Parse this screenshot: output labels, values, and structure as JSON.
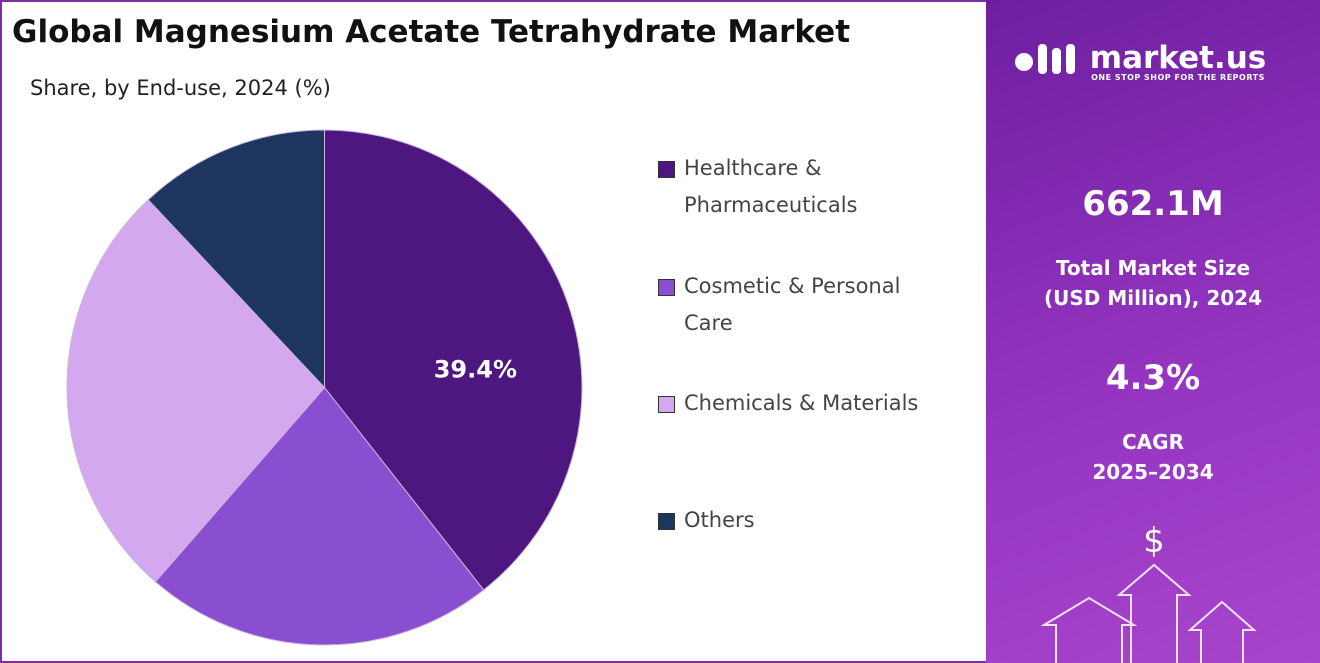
{
  "chart_data": {
    "type": "pie",
    "title": "Global Magnesium Acetate Tetrahydrate Market",
    "subtitle": "Share, by End-use, 2024 (%)",
    "categories": [
      "Healthcare & Pharmaceuticals",
      "Cosmetic & Personal Care",
      "Chemicals & Materials",
      "Others"
    ],
    "values": [
      39.4,
      22.0,
      26.6,
      12.0
    ],
    "value_labels": [
      "39.4%",
      null,
      null,
      null
    ],
    "colors": [
      "#4e1780",
      "#8a4fd0",
      "#d3a8ee",
      "#1e355f"
    ],
    "legend": "right"
  },
  "panel": {
    "brand": "market.us",
    "tagline": "ONE STOP SHOP FOR THE REPORTS",
    "market_size": "662.1M",
    "market_size_label_1": "Total Market Size",
    "market_size_label_2": "(USD Million), 2024",
    "cagr": "4.3%",
    "cagr_label_1": "CAGR",
    "cagr_label_2": "2025–2034"
  }
}
